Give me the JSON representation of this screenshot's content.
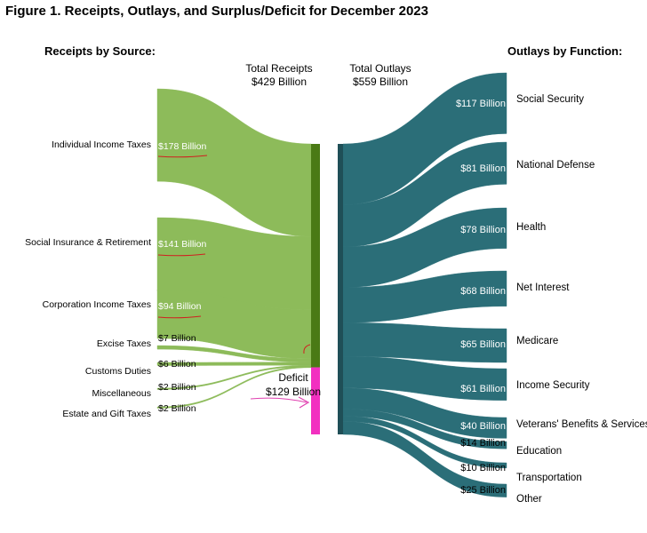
{
  "title": "Figure 1. Receipts, Outlays, and Surplus/Deficit for December 2023",
  "receipts_heading": "Receipts by Source:",
  "outlays_heading": "Outlays by Function:",
  "total_receipts": {
    "line1": "Total Receipts",
    "line2": "$429 Billion"
  },
  "total_outlays": {
    "line1": "Total Outlays",
    "line2": "$559 Billion"
  },
  "deficit": {
    "line1": "Deficit",
    "line2": "$129 Billion"
  },
  "colors": {
    "receipts": "#8dbb5a",
    "receipts_bar": "#4a7a15",
    "outlays": "#2b6e78",
    "deficit": "#f230c0",
    "annotation": "#d02020"
  },
  "chart_data": {
    "type": "sankey",
    "receipts": [
      {
        "name": "Individual Income Taxes",
        "value": 178,
        "label": "$178 Billion"
      },
      {
        "name": "Social Insurance & Retirement",
        "value": 141,
        "label": "$141 Billion"
      },
      {
        "name": "Corporation Income Taxes",
        "value": 94,
        "label": "$94 Billion"
      },
      {
        "name": "Excise Taxes",
        "value": 7,
        "label": "$7 Billion"
      },
      {
        "name": "Customs Duties",
        "value": 6,
        "label": "$6 Billion"
      },
      {
        "name": "Miscellaneous",
        "value": 2,
        "label": "$2 Billion"
      },
      {
        "name": "Estate and Gift Taxes",
        "value": 2,
        "label": "$2 Billion"
      }
    ],
    "deficit": 129,
    "outlays": [
      {
        "name": "Social Security",
        "value": 117,
        "label": "$117 Billion"
      },
      {
        "name": "National Defense",
        "value": 81,
        "label": "$81 Billion"
      },
      {
        "name": "Health",
        "value": 78,
        "label": "$78 Billion"
      },
      {
        "name": "Net Interest",
        "value": 68,
        "label": "$68 Billion"
      },
      {
        "name": "Medicare",
        "value": 65,
        "label": "$65 Billion"
      },
      {
        "name": "Income Security",
        "value": 61,
        "label": "$61 Billion"
      },
      {
        "name": "Veterans' Benefits & Services",
        "value": 40,
        "label": "$40 Billion"
      },
      {
        "name": "Education",
        "value": 14,
        "label": "$14 Billion"
      },
      {
        "name": "Transportation",
        "value": 10,
        "label": "$10 Billion"
      },
      {
        "name": "Other",
        "value": 25,
        "label": "$25 Billion"
      }
    ]
  }
}
